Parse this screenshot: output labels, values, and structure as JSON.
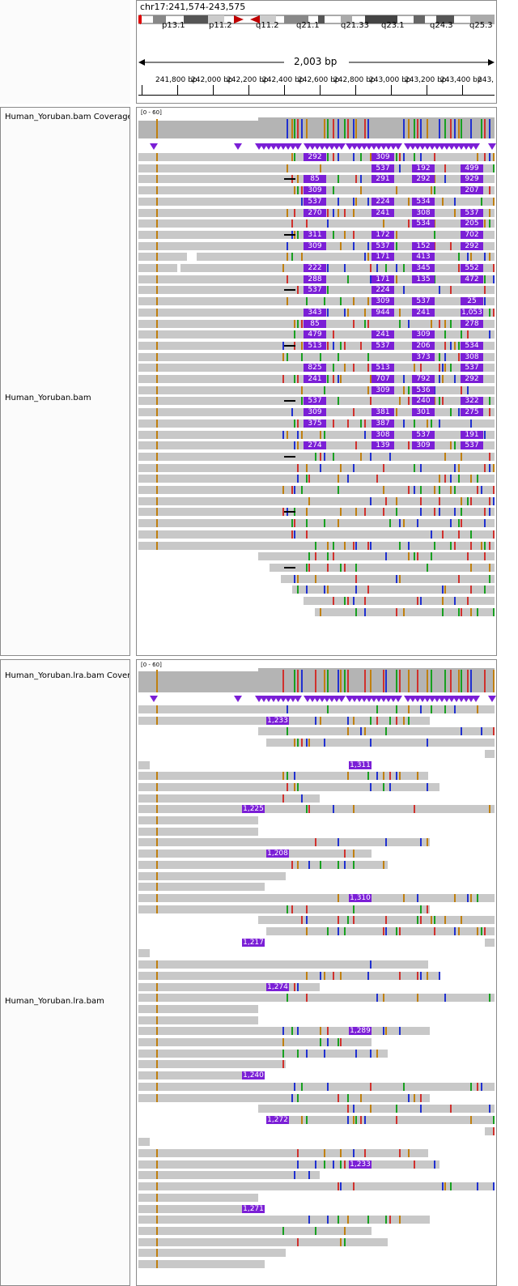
{
  "header": {
    "locus": "chr17:241,574-243,575",
    "span_label": "2,003 bp",
    "bands": [
      "p13.1",
      "p11.2",
      "q11.2",
      "q21.1",
      "q21.33",
      "q23.1",
      "q24.3",
      "q25.3"
    ],
    "ruler_ticks": [
      "241,800 bp",
      "242,000 bp",
      "242,200 bp",
      "242,400 bp",
      "242,600 bp",
      "242,800 bp",
      "243,000 bp",
      "243,200 bp",
      "243,400 bp",
      "243,"
    ]
  },
  "tracks": {
    "bam_coverage": "Human_Yoruban.bam Coverage",
    "bam": "Human_Yoruban.bam",
    "lra_coverage": "Human_Yoruban.lra.bam Coverage",
    "lra": "Human_Yoruban.lra.bam",
    "coverage_range": "[0 - 60]"
  },
  "colors": {
    "insertion": "#7b1fd6",
    "read": "#c8c8c8",
    "coverage": "#b4b4b4",
    "mismatch_a": "#d0312d",
    "mismatch_c": "#2030d0",
    "mismatch_g": "#c08010",
    "mismatch_t": "#18a020"
  },
  "bam_insertion_labels": [
    "292",
    "309",
    "537",
    "192",
    "499",
    "292",
    "929",
    "85",
    "291",
    "207",
    "309",
    "537",
    "224",
    "534",
    "241",
    "308",
    "537",
    "270",
    "534",
    "205",
    "702",
    "311",
    "172",
    "309",
    "537",
    "152",
    "292",
    "171",
    "413",
    "345",
    "552",
    "222",
    "472",
    "288",
    "171",
    "135",
    "537",
    "224",
    "309",
    "537",
    "25",
    "241",
    "1,053",
    "343",
    "944",
    "278",
    "85",
    "479",
    "241",
    "309",
    "537",
    "206",
    "534",
    "513",
    "373",
    "308",
    "537",
    "825",
    "513",
    "241",
    "707",
    "792",
    "292",
    "309",
    "536",
    "240",
    "322",
    "537",
    "275",
    "309",
    "381",
    "301",
    "375",
    "387",
    "308",
    "537",
    "191",
    "309",
    "537",
    "274",
    "139"
  ],
  "lra_insertion_labels": [
    "1,233",
    "1,311",
    "1,225",
    "1,208",
    "1,310",
    "1,217",
    "1,274",
    "1,289",
    "1,240",
    "1,272",
    "1,233",
    "1,271"
  ]
}
